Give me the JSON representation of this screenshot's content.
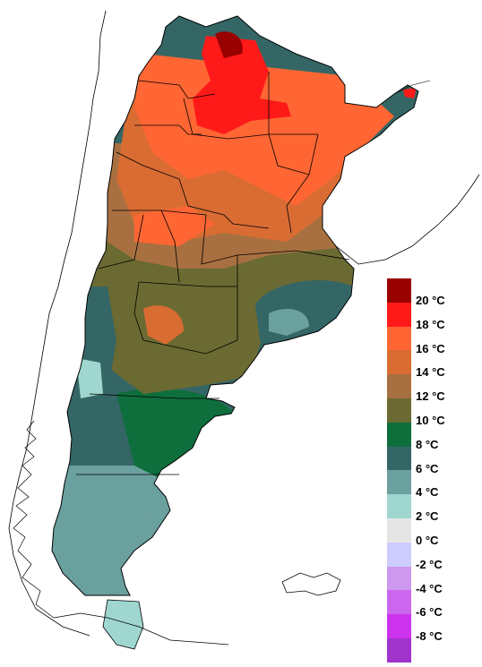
{
  "map": {
    "colors": {
      "ocean": "#ffffff",
      "border": "#000000"
    }
  },
  "legend": {
    "items": [
      {
        "label": "20 °C",
        "color": "#990000"
      },
      {
        "label": "18 °C",
        "color": "#ff1a1a"
      },
      {
        "label": "16 °C",
        "color": "#ff6633"
      },
      {
        "label": "14 °C",
        "color": "#d96c33"
      },
      {
        "label": "12 °C",
        "color": "#a87040"
      },
      {
        "label": "10 °C",
        "color": "#6b6a33"
      },
      {
        "label": "8 °C",
        "color": "#0e6e3c"
      },
      {
        "label": "6 °C",
        "color": "#356666"
      },
      {
        "label": "4 °C",
        "color": "#6aa09e"
      },
      {
        "label": "2 °C",
        "color": "#9fd6d0"
      },
      {
        "label": "0 °C",
        "color": "#e6e6e6"
      },
      {
        "label": "-2 °C",
        "color": "#ccccff"
      },
      {
        "label": "-4 °C",
        "color": "#cc99ee"
      },
      {
        "label": "-6 °C",
        "color": "#cc66ee"
      },
      {
        "label": "-8 °C",
        "color": "#cc33ee"
      },
      {
        "label": "",
        "color": "#a033cc"
      }
    ]
  }
}
